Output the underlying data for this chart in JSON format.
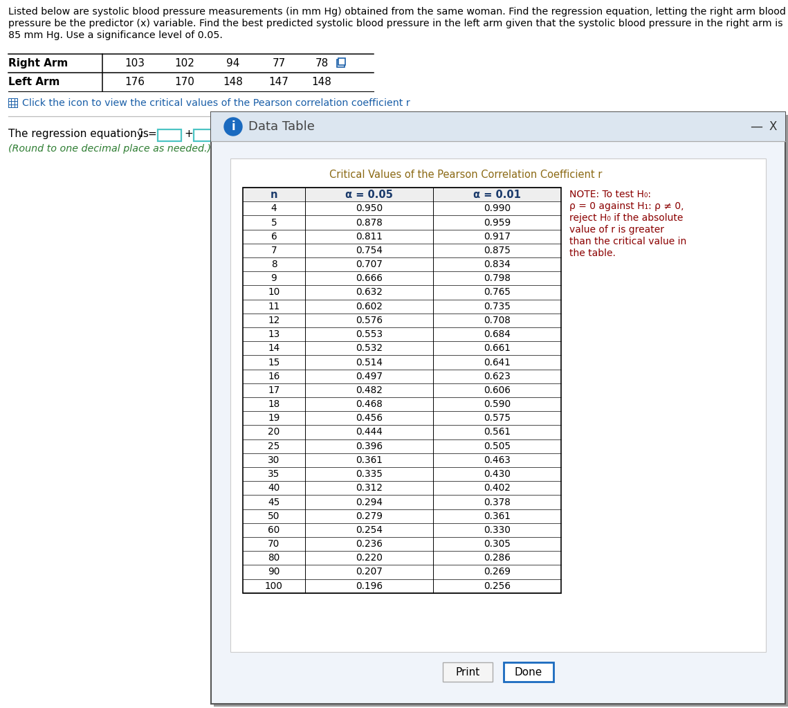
{
  "title_lines": [
    "Listed below are systolic blood pressure measurements (in mm Hg) obtained from the same woman. Find the regression equation, letting the right arm blood",
    "pressure be the predictor (x) variable. Find the best predicted systolic blood pressure in the left arm given that the systolic blood pressure in the right arm is",
    "85 mm Hg. Use a significance level of 0.05."
  ],
  "right_arm_label": "Right Arm",
  "left_arm_label": "Left Arm",
  "right_arm_values": [
    103,
    102,
    94,
    77,
    78
  ],
  "left_arm_values": [
    176,
    170,
    148,
    147,
    148
  ],
  "click_text": "Click the icon to view the critical values of the Pearson correlation coefficient r",
  "regression_note": "(Round to one decimal place as needed.)",
  "dialog_title": "Data Table",
  "table_title": "Critical Values of the Pearson Correlation Coefficient r",
  "col_headers": [
    "n",
    "α = 0.05",
    "α = 0.01"
  ],
  "note_lines": [
    "NOTE: To test H₀:",
    "ρ = 0 against H₁: ρ ≠ 0,",
    "reject H₀ if the absolute",
    "value of r is greater",
    "than the critical value in",
    "the table."
  ],
  "table_data": [
    [
      4,
      0.95,
      0.99
    ],
    [
      5,
      0.878,
      0.959
    ],
    [
      6,
      0.811,
      0.917
    ],
    [
      7,
      0.754,
      0.875
    ],
    [
      8,
      0.707,
      0.834
    ],
    [
      9,
      0.666,
      0.798
    ],
    [
      10,
      0.632,
      0.765
    ],
    [
      11,
      0.602,
      0.735
    ],
    [
      12,
      0.576,
      0.708
    ],
    [
      13,
      0.553,
      0.684
    ],
    [
      14,
      0.532,
      0.661
    ],
    [
      15,
      0.514,
      0.641
    ],
    [
      16,
      0.497,
      0.623
    ],
    [
      17,
      0.482,
      0.606
    ],
    [
      18,
      0.468,
      0.59
    ],
    [
      19,
      0.456,
      0.575
    ],
    [
      20,
      0.444,
      0.561
    ],
    [
      25,
      0.396,
      0.505
    ],
    [
      30,
      0.361,
      0.463
    ],
    [
      35,
      0.335,
      0.43
    ],
    [
      40,
      0.312,
      0.402
    ],
    [
      45,
      0.294,
      0.378
    ],
    [
      50,
      0.279,
      0.361
    ],
    [
      60,
      0.254,
      0.33
    ],
    [
      70,
      0.236,
      0.305
    ],
    [
      80,
      0.22,
      0.286
    ],
    [
      90,
      0.207,
      0.269
    ],
    [
      100,
      0.196,
      0.256
    ]
  ],
  "bg_color": "#ffffff",
  "dialog_header_bg": "#dce6f0",
  "title_color": "#000000",
  "bold_color": "#000000",
  "click_icon_color": "#1a5fa8",
  "box_border_color": "#4cc4c4",
  "note_text_color": "#8b0000",
  "table_title_color": "#8b6914",
  "header_text_color": "#1a3a6b",
  "done_btn_border": "#1a6abf",
  "regression_green": "#2e7d32",
  "dialog_border": "#555555",
  "dialog_shadow": "#999999"
}
